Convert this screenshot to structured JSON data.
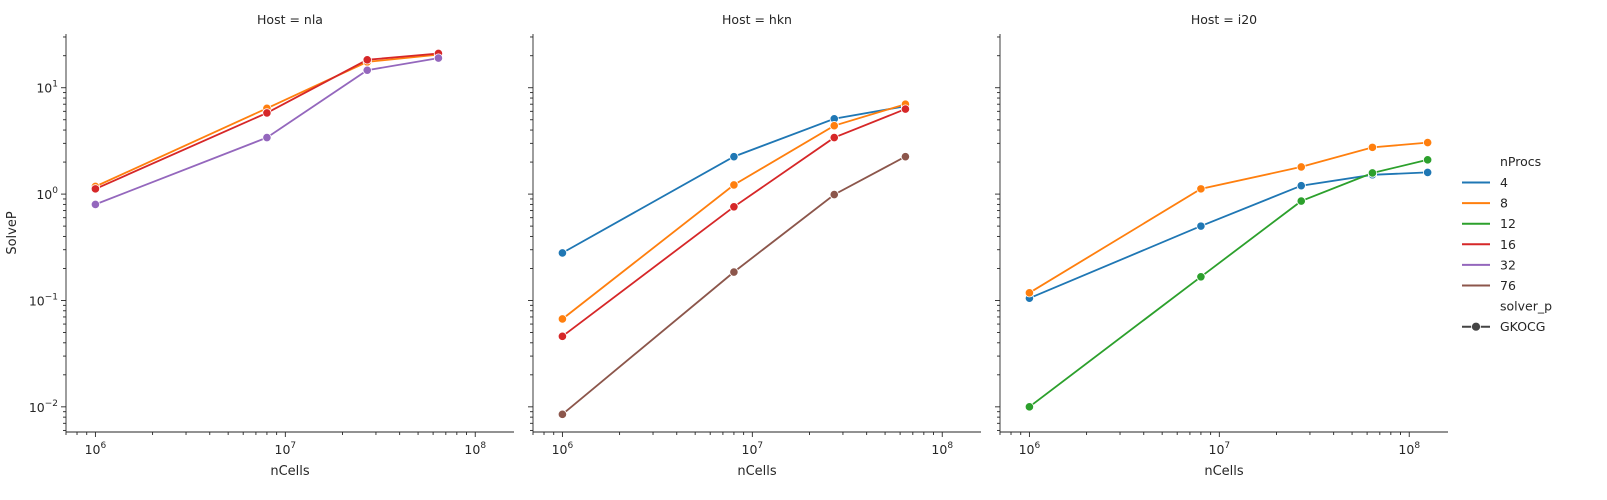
{
  "chart_data": {
    "type": "line",
    "x_scale": "log",
    "y_scale": "log",
    "xlabel": "nCells",
    "ylabel": "SolveP",
    "xlim": [
      700000,
      160000000
    ],
    "ylim": [
      0.0058,
      32
    ],
    "x_tick_values": [
      1000000,
      10000000,
      100000000
    ],
    "x_tick_labels": [
      "10",
      "10",
      "10"
    ],
    "x_tick_exponents": [
      "6",
      "7",
      "8"
    ],
    "y_tick_values": [
      0.01,
      0.1,
      1,
      10
    ],
    "y_tick_labels": [
      "10",
      "10",
      "10",
      "10"
    ],
    "y_tick_exponents": [
      "−2",
      "−1",
      "0",
      "1"
    ],
    "legend": {
      "placement": "right",
      "hue_title": "nProcs",
      "hue_entries": [
        {
          "label": "4",
          "color": "#1f77b4"
        },
        {
          "label": "8",
          "color": "#ff7f0e"
        },
        {
          "label": "12",
          "color": "#2ca02c"
        },
        {
          "label": "16",
          "color": "#d62728"
        },
        {
          "label": "32",
          "color": "#9467bd"
        },
        {
          "label": "76",
          "color": "#8c564b"
        }
      ],
      "style_title": "solver_p",
      "style_entries": [
        {
          "label": "GKOCG",
          "color": "#444444"
        }
      ]
    },
    "panels": [
      {
        "title": "Host = nla",
        "series": [
          {
            "nprocs": "8",
            "color": "#ff7f0e",
            "x": [
              1000000,
              8000000,
              27000000,
              64000000
            ],
            "y": [
              1.18,
              6.4,
              17.5,
              20.5
            ]
          },
          {
            "nprocs": "16",
            "color": "#d62728",
            "x": [
              1000000,
              8000000,
              27000000,
              64000000
            ],
            "y": [
              1.12,
              5.8,
              18.3,
              21.0
            ]
          },
          {
            "nprocs": "32",
            "color": "#9467bd",
            "x": [
              1000000,
              8000000,
              27000000,
              64000000
            ],
            "y": [
              0.8,
              3.4,
              14.6,
              19.0
            ]
          }
        ]
      },
      {
        "title": "Host = hkn",
        "series": [
          {
            "nprocs": "4",
            "color": "#1f77b4",
            "x": [
              1000000,
              8000000,
              27000000,
              64000000
            ],
            "y": [
              0.28,
              2.25,
              5.1,
              6.7
            ]
          },
          {
            "nprocs": "8",
            "color": "#ff7f0e",
            "x": [
              1000000,
              8000000,
              27000000,
              64000000
            ],
            "y": [
              0.067,
              1.22,
              4.4,
              7.0
            ]
          },
          {
            "nprocs": "16",
            "color": "#d62728",
            "x": [
              1000000,
              8000000,
              27000000,
              64000000
            ],
            "y": [
              0.046,
              0.76,
              3.4,
              6.3
            ]
          },
          {
            "nprocs": "76",
            "color": "#8c564b",
            "x": [
              1000000,
              8000000,
              27000000,
              64000000
            ],
            "y": [
              0.0085,
              0.185,
              0.99,
              2.25
            ]
          }
        ]
      },
      {
        "title": "Host = i20",
        "series": [
          {
            "nprocs": "4",
            "color": "#1f77b4",
            "x": [
              1000000,
              8000000,
              27000000,
              64000000,
              125000000
            ],
            "y": [
              0.105,
              0.5,
              1.2,
              1.52,
              1.6
            ]
          },
          {
            "nprocs": "8",
            "color": "#ff7f0e",
            "x": [
              1000000,
              8000000,
              27000000,
              64000000,
              125000000
            ],
            "y": [
              0.118,
              1.12,
              1.8,
              2.75,
              3.05
            ]
          },
          {
            "nprocs": "12",
            "color": "#2ca02c",
            "x": [
              1000000,
              8000000,
              27000000,
              64000000,
              125000000
            ],
            "y": [
              0.01,
              0.167,
              0.86,
              1.58,
              2.1
            ]
          }
        ]
      }
    ]
  }
}
